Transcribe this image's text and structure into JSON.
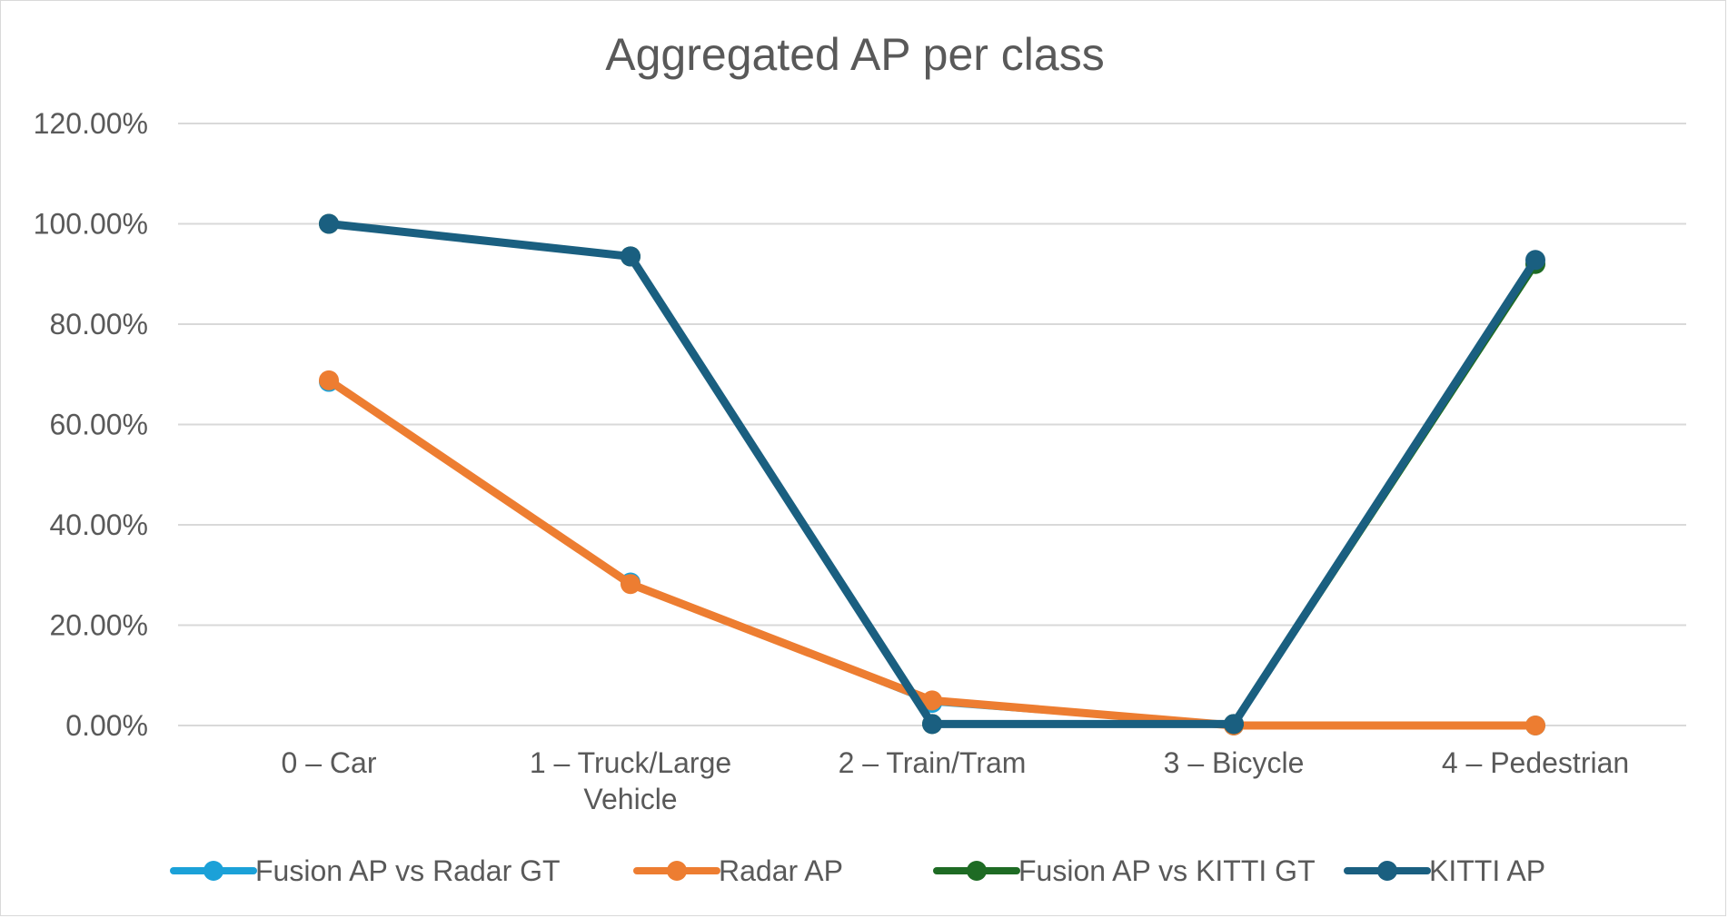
{
  "chart_data": {
    "type": "line",
    "title": "Aggregated AP per class",
    "xlabel": "",
    "ylabel": "",
    "ylim": [
      0,
      1.2
    ],
    "yticks": [
      0,
      0.2,
      0.4,
      0.6,
      0.8,
      1.0,
      1.2
    ],
    "ytick_labels": [
      "0.00%",
      "20.00%",
      "40.00%",
      "60.00%",
      "80.00%",
      "100.00%",
      "120.00%"
    ],
    "grid": true,
    "legend_position": "bottom",
    "categories": [
      [
        "0 – Car"
      ],
      [
        "1 – Truck/Large",
        "Vehicle"
      ],
      [
        "2 – Train/Tram"
      ],
      [
        "3 – Bicycle"
      ],
      [
        "4 – Pedestrian"
      ]
    ],
    "series": [
      {
        "name": "Fusion AP vs Radar GT",
        "color": "#1ba1d8",
        "values": [
          0.685,
          0.285,
          0.045,
          0.0,
          0.0
        ]
      },
      {
        "name": "Radar AP",
        "color": "#ed7d31",
        "values": [
          0.688,
          0.282,
          0.05,
          0.0,
          0.0
        ]
      },
      {
        "name": "Fusion AP vs KITTI GT",
        "color": "#1e6b24",
        "values": [
          1.0,
          0.935,
          0.003,
          0.003,
          0.92
        ]
      },
      {
        "name": "KITTI AP",
        "color": "#1a5f80",
        "values": [
          1.0,
          0.935,
          0.003,
          0.003,
          0.928
        ]
      }
    ]
  }
}
